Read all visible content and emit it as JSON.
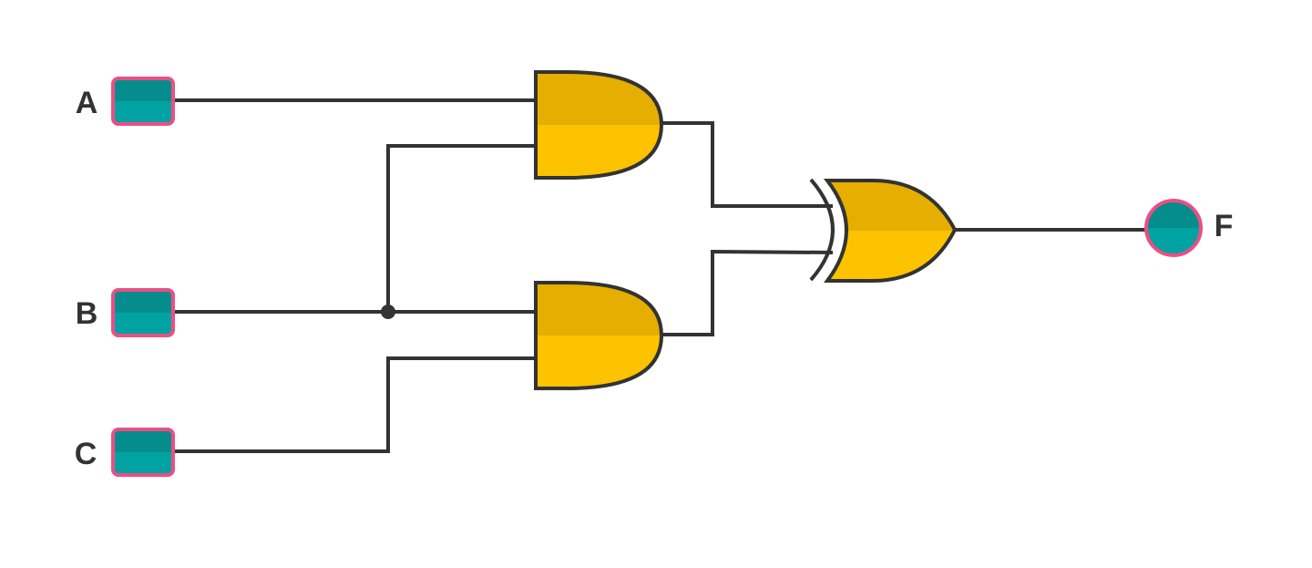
{
  "inputs": [
    {
      "id": "A",
      "label": "A"
    },
    {
      "id": "B",
      "label": "B"
    },
    {
      "id": "C",
      "label": "C"
    }
  ],
  "output": {
    "id": "F",
    "label": "F"
  },
  "gates": [
    {
      "id": "and1",
      "type": "AND",
      "inputs": [
        "A",
        "B"
      ]
    },
    {
      "id": "and2",
      "type": "AND",
      "inputs": [
        "B",
        "C"
      ]
    },
    {
      "id": "xor1",
      "type": "XOR",
      "inputs": [
        "and1",
        "and2"
      ],
      "output": "F"
    }
  ],
  "colors": {
    "wire": "#333333",
    "gate_top": "#e5ae00",
    "gate_bottom": "#fdc200",
    "terminal_top": "#058d8d",
    "terminal_bottom": "#00a2a2",
    "terminal_border": "#ea4f84",
    "label": "#333333"
  }
}
